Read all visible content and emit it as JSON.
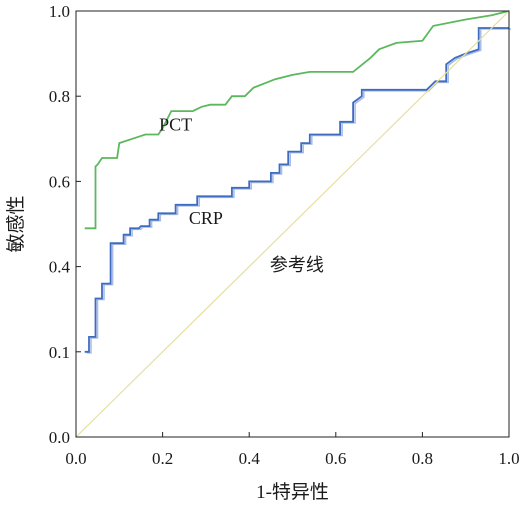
{
  "chart_data": {
    "type": "line",
    "xlabel": "1-特异性",
    "ylabel": "敏感性",
    "xlim": [
      0,
      1
    ],
    "ylim": [
      0,
      1
    ],
    "x_ticks": [
      "0.0",
      "0.2",
      "0.4",
      "0.6",
      "0.8",
      "1.0"
    ],
    "y_ticks": [
      "0.0",
      "0.1",
      "0.4",
      "0.6",
      "0.8",
      "1.0"
    ],
    "grid": false,
    "series": [
      {
        "name": "PCT",
        "color": "#5cb85c",
        "step": true,
        "points": [
          [
            0.02,
            0.49
          ],
          [
            0.045,
            0.49
          ],
          [
            0.045,
            0.635
          ],
          [
            0.05,
            0.64
          ],
          [
            0.06,
            0.655
          ],
          [
            0.095,
            0.655
          ],
          [
            0.1,
            0.69
          ],
          [
            0.13,
            0.7
          ],
          [
            0.16,
            0.71
          ],
          [
            0.19,
            0.71
          ],
          [
            0.2,
            0.725
          ],
          [
            0.22,
            0.765
          ],
          [
            0.27,
            0.765
          ],
          [
            0.29,
            0.775
          ],
          [
            0.31,
            0.78
          ],
          [
            0.345,
            0.78
          ],
          [
            0.36,
            0.8
          ],
          [
            0.39,
            0.8
          ],
          [
            0.41,
            0.82
          ],
          [
            0.46,
            0.84
          ],
          [
            0.5,
            0.85
          ],
          [
            0.54,
            0.857
          ],
          [
            0.64,
            0.857
          ],
          [
            0.68,
            0.89
          ],
          [
            0.7,
            0.91
          ],
          [
            0.74,
            0.925
          ],
          [
            0.8,
            0.93
          ],
          [
            0.825,
            0.965
          ],
          [
            0.9,
            0.98
          ],
          [
            0.96,
            0.99
          ],
          [
            1.0,
            1.0
          ]
        ]
      },
      {
        "name": "CRP",
        "color": "#3f6cc0",
        "step": true,
        "points": [
          [
            0.02,
            0.2
          ],
          [
            0.03,
            0.2
          ],
          [
            0.03,
            0.235
          ],
          [
            0.045,
            0.235
          ],
          [
            0.045,
            0.325
          ],
          [
            0.06,
            0.325
          ],
          [
            0.06,
            0.36
          ],
          [
            0.08,
            0.36
          ],
          [
            0.08,
            0.455
          ],
          [
            0.11,
            0.455
          ],
          [
            0.11,
            0.475
          ],
          [
            0.125,
            0.475
          ],
          [
            0.125,
            0.49
          ],
          [
            0.145,
            0.49
          ],
          [
            0.15,
            0.495
          ],
          [
            0.17,
            0.495
          ],
          [
            0.17,
            0.51
          ],
          [
            0.19,
            0.51
          ],
          [
            0.19,
            0.525
          ],
          [
            0.23,
            0.525
          ],
          [
            0.23,
            0.545
          ],
          [
            0.28,
            0.545
          ],
          [
            0.28,
            0.565
          ],
          [
            0.36,
            0.565
          ],
          [
            0.36,
            0.585
          ],
          [
            0.4,
            0.585
          ],
          [
            0.4,
            0.6
          ],
          [
            0.45,
            0.6
          ],
          [
            0.45,
            0.62
          ],
          [
            0.47,
            0.62
          ],
          [
            0.47,
            0.64
          ],
          [
            0.49,
            0.64
          ],
          [
            0.49,
            0.67
          ],
          [
            0.52,
            0.67
          ],
          [
            0.52,
            0.69
          ],
          [
            0.54,
            0.69
          ],
          [
            0.54,
            0.71
          ],
          [
            0.61,
            0.71
          ],
          [
            0.61,
            0.74
          ],
          [
            0.64,
            0.74
          ],
          [
            0.64,
            0.785
          ],
          [
            0.66,
            0.8
          ],
          [
            0.66,
            0.815
          ],
          [
            0.81,
            0.815
          ],
          [
            0.83,
            0.835
          ],
          [
            0.855,
            0.835
          ],
          [
            0.855,
            0.875
          ],
          [
            0.875,
            0.89
          ],
          [
            0.9,
            0.9
          ],
          [
            0.93,
            0.91
          ],
          [
            0.93,
            0.96
          ],
          [
            1.0,
            0.96
          ]
        ]
      },
      {
        "name": "参考线",
        "color": "#e6dfa0",
        "step": false,
        "points": [
          [
            0,
            0
          ],
          [
            1,
            1
          ]
        ]
      }
    ],
    "annotations": [
      {
        "text": "PCT",
        "x": 0.23,
        "y": 0.72
      },
      {
        "text": "CRP",
        "x": 0.3,
        "y": 0.5
      },
      {
        "text": "参考线",
        "x": 0.51,
        "y": 0.39
      }
    ]
  }
}
